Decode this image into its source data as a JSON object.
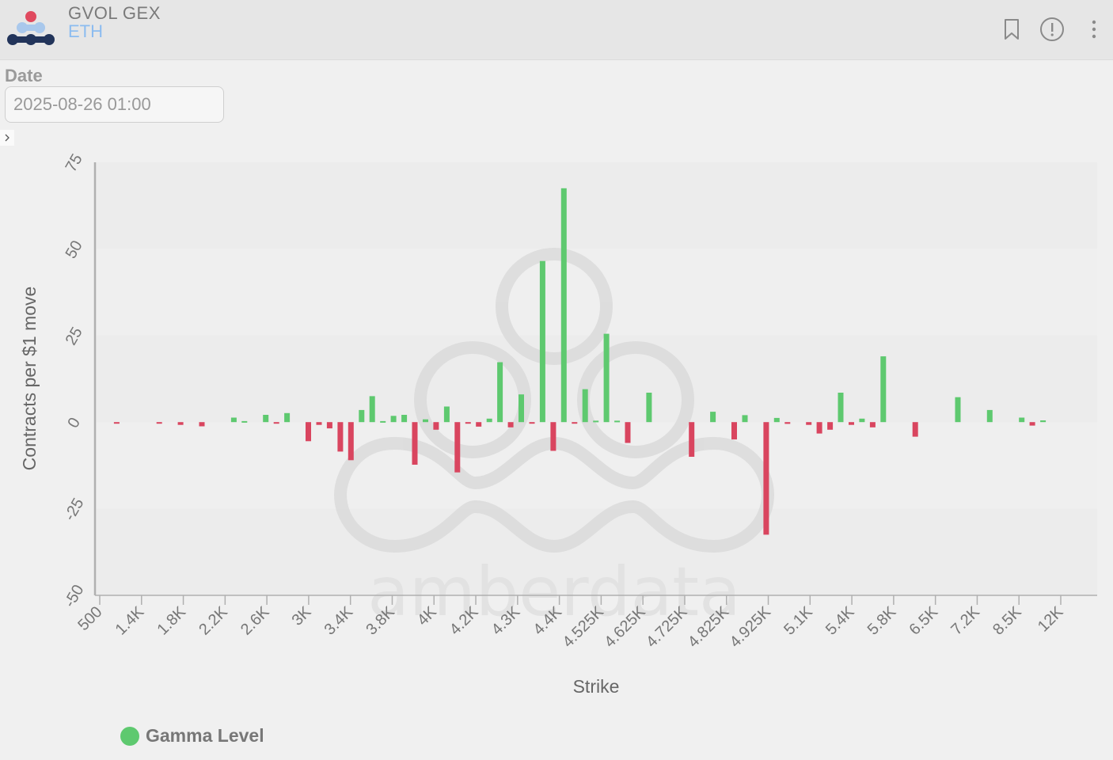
{
  "header": {
    "title": "GVOL GEX",
    "subtitle": "ETH",
    "icons": [
      "bookmark-icon",
      "info-icon",
      "more-icon"
    ]
  },
  "filters": {
    "date_label": "Date",
    "date_value": "2025-08-26 01:00"
  },
  "watermark": "amberdata",
  "colors": {
    "positive": "#5ec96f",
    "negative": "#d9455f"
  },
  "chart_data": {
    "type": "bar",
    "xlabel": "Strike",
    "ylabel": "Contracts per $1 move",
    "ylim": [
      -50,
      75
    ],
    "yticks": [
      -50,
      -25,
      0,
      25,
      50,
      75
    ],
    "xtick_labels": [
      "500",
      "1.4K",
      "1.8K",
      "2.2K",
      "2.6K",
      "3K",
      "3.4K",
      "3.8K",
      "4K",
      "4.2K",
      "4.3K",
      "4.4K",
      "4.525K",
      "4.625K",
      "4.725K",
      "4.825K",
      "4.925K",
      "5.1K",
      "5.4K",
      "5.8K",
      "6.5K",
      "7.2K",
      "8.5K",
      "12K"
    ],
    "legend": [
      {
        "name": "Gamma Level"
      }
    ],
    "values": [
      0,
      -0.3,
      0,
      0,
      0,
      -0.4,
      0,
      -0.8,
      0,
      -1.2,
      0,
      0,
      1.3,
      0.3,
      0,
      2.1,
      -0.4,
      2.6,
      0,
      -5.5,
      -0.8,
      -1.8,
      -8.5,
      -11,
      3.5,
      7.5,
      0.3,
      1.8,
      2.1,
      -12.3,
      0.8,
      -2.2,
      4.5,
      -14.5,
      -0.3,
      -1.3,
      1,
      17.3,
      -1.5,
      8,
      -0.3,
      46.5,
      -8.3,
      67.5,
      -0.4,
      9.5,
      0.4,
      25.5,
      0.4,
      -6,
      0,
      8.5,
      0,
      0,
      0,
      -10,
      0,
      3,
      0,
      -5,
      2,
      0,
      -32.5,
      1.2,
      -0.5,
      0,
      -0.8,
      -3.3,
      -2.2,
      8.5,
      -0.8,
      1,
      -1.5,
      19,
      0,
      0,
      -4.2,
      0,
      0,
      0,
      7.2,
      0,
      0,
      3.5,
      0,
      0,
      1.3,
      -1,
      0.5,
      0
    ]
  }
}
